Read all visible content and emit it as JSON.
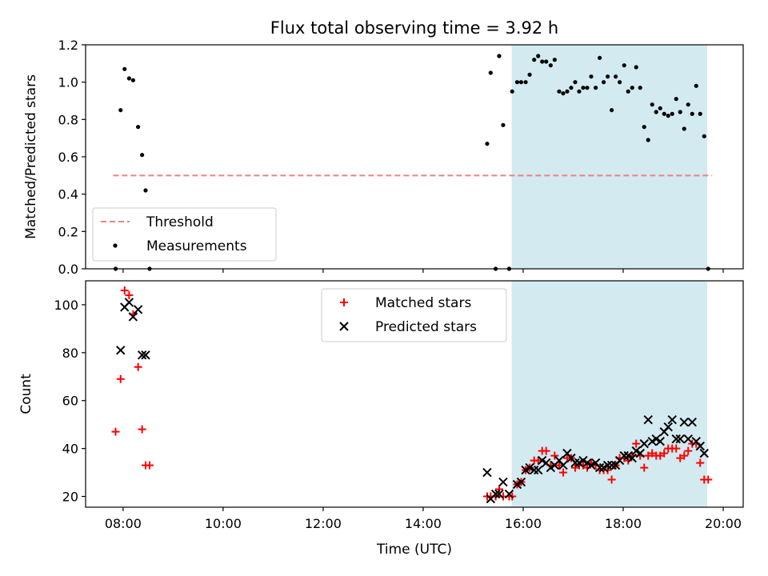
{
  "chart_data": {
    "title": "Flux total observing time = 3.92 h",
    "xlabel": "Time (UTC)",
    "x_ticks": [
      "08:00",
      "10:00",
      "12:00",
      "14:00",
      "16:00",
      "18:00",
      "20:00"
    ],
    "x_tick_hours": [
      8,
      10,
      12,
      14,
      16,
      18,
      20
    ],
    "xlim": [
      7.25,
      20.4
    ],
    "observing_window": {
      "start": 15.77,
      "end": 19.68,
      "color": "#d3eaf1"
    },
    "panels": [
      {
        "type": "scatter",
        "ylabel": "Matched/Predicted stars",
        "ylim": [
          0,
          1.2
        ],
        "y_ticks": [
          0.0,
          0.2,
          0.4,
          0.6,
          0.8,
          1.0,
          1.2
        ],
        "legend_position": "lower-left",
        "threshold": {
          "name": "Threshold",
          "value": 0.5,
          "x_range": [
            7.8,
            19.78
          ],
          "color": "#f08080"
        },
        "series": [
          {
            "name": "Measurements",
            "color": "#000000",
            "marker": "dot",
            "points": [
              [
                7.85,
                0.0
              ],
              [
                7.95,
                0.85
              ],
              [
                8.03,
                1.07
              ],
              [
                8.12,
                1.02
              ],
              [
                8.2,
                1.01
              ],
              [
                8.3,
                0.76
              ],
              [
                8.38,
                0.61
              ],
              [
                8.45,
                0.42
              ],
              [
                8.53,
                0.0
              ],
              [
                15.28,
                0.67
              ],
              [
                15.35,
                1.05
              ],
              [
                15.45,
                0.0
              ],
              [
                15.52,
                1.14
              ],
              [
                15.6,
                0.77
              ],
              [
                15.72,
                0.0
              ],
              [
                15.78,
                0.95
              ],
              [
                15.88,
                1.0
              ],
              [
                15.96,
                1.0
              ],
              [
                16.05,
                1.0
              ],
              [
                16.13,
                1.04
              ],
              [
                16.22,
                1.12
              ],
              [
                16.3,
                1.14
              ],
              [
                16.38,
                1.11
              ],
              [
                16.46,
                1.11
              ],
              [
                16.55,
                1.09
              ],
              [
                16.63,
                1.12
              ],
              [
                16.72,
                0.95
              ],
              [
                16.8,
                0.94
              ],
              [
                16.88,
                0.95
              ],
              [
                16.96,
                0.97
              ],
              [
                17.04,
                1.0
              ],
              [
                17.12,
                0.95
              ],
              [
                17.2,
                0.97
              ],
              [
                17.28,
                0.97
              ],
              [
                17.36,
                1.03
              ],
              [
                17.45,
                0.97
              ],
              [
                17.53,
                1.13
              ],
              [
                17.61,
                1.0
              ],
              [
                17.69,
                1.03
              ],
              [
                17.77,
                0.85
              ],
              [
                17.85,
                1.03
              ],
              [
                17.93,
                1.0
              ],
              [
                18.02,
                1.09
              ],
              [
                18.1,
                0.95
              ],
              [
                18.18,
                0.97
              ],
              [
                18.26,
                1.08
              ],
              [
                18.34,
                0.97
              ],
              [
                18.42,
                0.76
              ],
              [
                18.5,
                0.69
              ],
              [
                18.58,
                0.88
              ],
              [
                18.66,
                0.84
              ],
              [
                18.74,
                0.86
              ],
              [
                18.82,
                0.83
              ],
              [
                18.9,
                0.82
              ],
              [
                18.98,
                0.83
              ],
              [
                19.06,
                0.91
              ],
              [
                19.14,
                0.84
              ],
              [
                19.22,
                0.75
              ],
              [
                19.3,
                0.88
              ],
              [
                19.38,
                0.83
              ],
              [
                19.46,
                0.98
              ],
              [
                19.54,
                0.83
              ],
              [
                19.62,
                0.71
              ],
              [
                19.7,
                0.0
              ]
            ]
          }
        ]
      },
      {
        "type": "scatter",
        "ylabel": "Count",
        "ylim": [
          15.5,
          110
        ],
        "y_ticks": [
          20,
          40,
          60,
          80,
          100
        ],
        "legend_position": "top-center",
        "series": [
          {
            "name": "Matched stars",
            "color": "#ff0000",
            "marker": "plus",
            "points": [
              [
                7.85,
                47
              ],
              [
                7.95,
                69
              ],
              [
                8.03,
                106
              ],
              [
                8.12,
                104
              ],
              [
                8.2,
                96
              ],
              [
                8.3,
                74
              ],
              [
                8.38,
                48
              ],
              [
                8.45,
                33
              ],
              [
                8.53,
                33
              ],
              [
                15.28,
                20
              ],
              [
                15.35,
                20
              ],
              [
                15.45,
                20
              ],
              [
                15.52,
                23
              ],
              [
                15.6,
                20
              ],
              [
                15.72,
                20
              ],
              [
                15.78,
                20
              ],
              [
                15.88,
                25
              ],
              [
                15.96,
                26
              ],
              [
                16.05,
                31
              ],
              [
                16.13,
                32
              ],
              [
                16.22,
                35
              ],
              [
                16.3,
                35
              ],
              [
                16.38,
                39
              ],
              [
                16.46,
                39
              ],
              [
                16.55,
                33
              ],
              [
                16.63,
                37
              ],
              [
                16.72,
                33
              ],
              [
                16.8,
                30
              ],
              [
                16.88,
                36
              ],
              [
                16.96,
                36
              ],
              [
                17.04,
                32
              ],
              [
                17.12,
                33
              ],
              [
                17.2,
                33
              ],
              [
                17.28,
                32
              ],
              [
                17.36,
                34
              ],
              [
                17.45,
                33
              ],
              [
                17.53,
                31
              ],
              [
                17.61,
                31
              ],
              [
                17.69,
                31
              ],
              [
                17.77,
                27
              ],
              [
                17.85,
                33
              ],
              [
                17.93,
                36
              ],
              [
                18.02,
                36
              ],
              [
                18.1,
                35
              ],
              [
                18.18,
                37
              ],
              [
                18.26,
                42
              ],
              [
                18.34,
                37
              ],
              [
                18.42,
                32
              ],
              [
                18.5,
                37
              ],
              [
                18.58,
                38
              ],
              [
                18.66,
                37
              ],
              [
                18.74,
                37
              ],
              [
                18.82,
                38
              ],
              [
                18.9,
                40
              ],
              [
                18.98,
                40
              ],
              [
                19.06,
                40
              ],
              [
                19.14,
                36
              ],
              [
                19.22,
                37
              ],
              [
                19.3,
                39
              ],
              [
                19.38,
                42
              ],
              [
                19.46,
                42
              ],
              [
                19.54,
                34
              ],
              [
                19.62,
                27
              ],
              [
                19.7,
                27
              ]
            ]
          },
          {
            "name": "Predicted stars",
            "color": "#000000",
            "marker": "x",
            "points": [
              [
                7.95,
                81
              ],
              [
                8.03,
                99
              ],
              [
                8.12,
                101
              ],
              [
                8.2,
                95
              ],
              [
                8.3,
                98
              ],
              [
                8.38,
                79
              ],
              [
                8.45,
                79
              ],
              [
                15.28,
                30
              ],
              [
                15.35,
                19
              ],
              [
                15.45,
                21
              ],
              [
                15.52,
                21
              ],
              [
                15.6,
                26
              ],
              [
                15.72,
                21
              ],
              [
                15.88,
                25
              ],
              [
                15.96,
                26
              ],
              [
                16.05,
                31
              ],
              [
                16.13,
                32
              ],
              [
                16.22,
                31
              ],
              [
                16.3,
                31
              ],
              [
                16.38,
                35
              ],
              [
                16.46,
                34
              ],
              [
                16.55,
                32
              ],
              [
                16.63,
                33
              ],
              [
                16.72,
                35
              ],
              [
                16.8,
                33
              ],
              [
                16.88,
                38
              ],
              [
                16.96,
                36
              ],
              [
                17.04,
                34
              ],
              [
                17.12,
                34
              ],
              [
                17.2,
                35
              ],
              [
                17.28,
                34
              ],
              [
                17.36,
                33
              ],
              [
                17.45,
                34
              ],
              [
                17.53,
                32
              ],
              [
                17.61,
                32
              ],
              [
                17.69,
                33
              ],
              [
                17.77,
                33
              ],
              [
                17.85,
                33
              ],
              [
                17.93,
                35
              ],
              [
                18.02,
                37
              ],
              [
                18.1,
                37
              ],
              [
                18.18,
                36
              ],
              [
                18.26,
                39
              ],
              [
                18.34,
                38
              ],
              [
                18.42,
                42
              ],
              [
                18.5,
                52
              ],
              [
                18.58,
                43
              ],
              [
                18.66,
                44
              ],
              [
                18.74,
                43
              ],
              [
                18.82,
                47
              ],
              [
                18.9,
                49
              ],
              [
                18.98,
                52
              ],
              [
                19.06,
                44
              ],
              [
                19.14,
                44
              ],
              [
                19.22,
                51
              ],
              [
                19.3,
                44
              ],
              [
                19.38,
                51
              ],
              [
                19.46,
                43
              ],
              [
                19.54,
                41
              ],
              [
                19.62,
                38
              ]
            ]
          }
        ]
      }
    ]
  }
}
